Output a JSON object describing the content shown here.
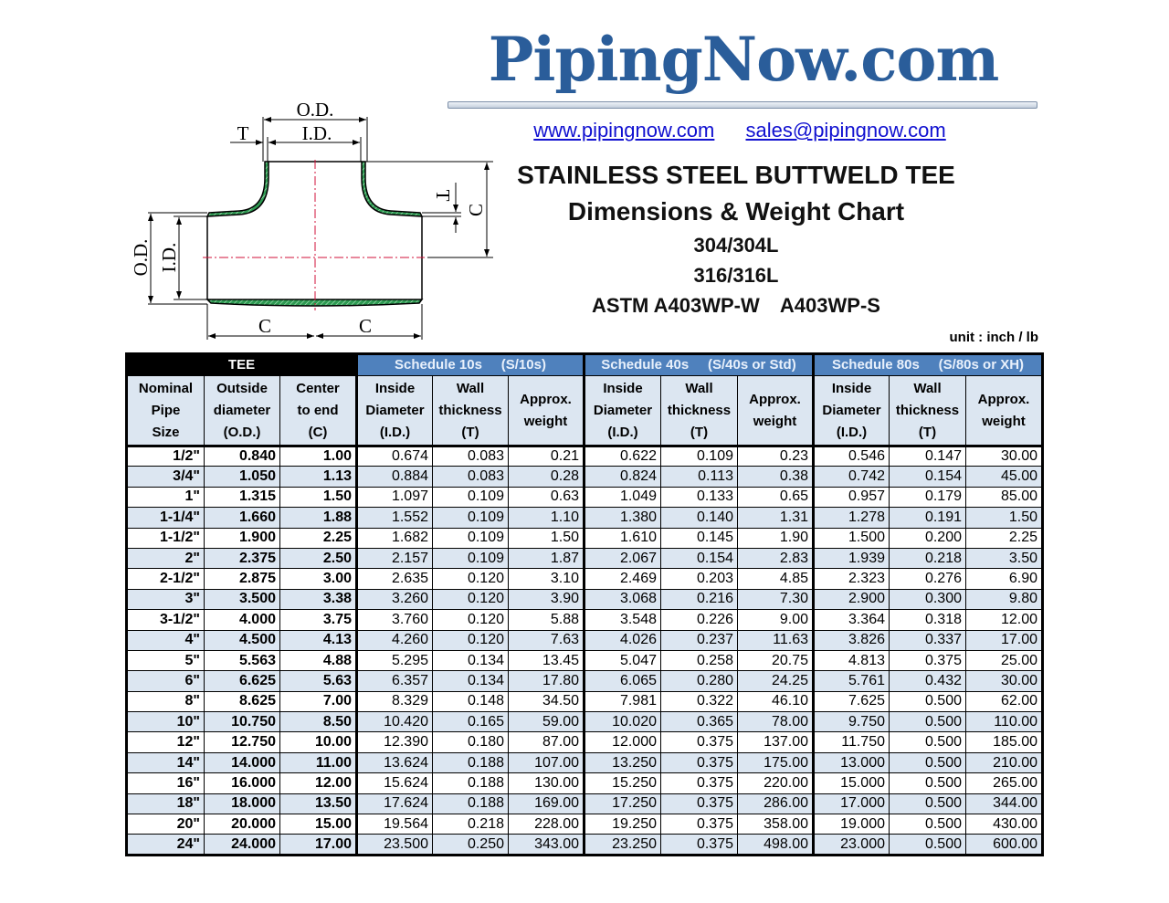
{
  "brand": {
    "logo_text": "PipingNow.com",
    "color": "#2a5d9a"
  },
  "links": {
    "website": "www.pipingnow.com",
    "email": "sales@pipingnow.com"
  },
  "title": {
    "line1": "STAINLESS STEEL BUTTWELD TEE",
    "line2": "Dimensions & Weight Chart",
    "line3": "304/304L",
    "line4": "316/316L",
    "standard_w": "ASTM A403WP-W",
    "standard_s": "A403WP-S"
  },
  "unit": "unit : inch / lb",
  "diagram": {
    "od": "O.D.",
    "id": "I.D.",
    "t": "T",
    "c": "C"
  },
  "table": {
    "groups": [
      "TEE",
      "Schedule 10s     (S/10s)",
      "Schedule 40s     (S/40s or Std)",
      "Schedule 80s     (S/80s or XH)"
    ],
    "columns": [
      [
        "Nominal",
        "Pipe",
        "Size"
      ],
      [
        "Outside",
        "diameter",
        "(O.D.)"
      ],
      [
        "Center",
        "to end",
        "(C)"
      ],
      [
        "Inside",
        "Diameter",
        "(I.D.)"
      ],
      [
        "Wall",
        "thickness",
        "(T)"
      ],
      [
        "Approx.",
        "weight"
      ],
      [
        "Inside",
        "Diameter",
        "(I.D.)"
      ],
      [
        "Wall",
        "thickness",
        "(T)"
      ],
      [
        "Approx.",
        "weight"
      ],
      [
        "Inside",
        "Diameter",
        "(I.D.)"
      ],
      [
        "Wall",
        "thickness",
        "(T)"
      ],
      [
        "Approx.",
        "weight"
      ]
    ],
    "rows": [
      [
        "1/2\"",
        "0.840",
        "1.00",
        "0.674",
        "0.083",
        "0.21",
        "0.622",
        "0.109",
        "0.23",
        "0.546",
        "0.147",
        "30.00"
      ],
      [
        "3/4\"",
        "1.050",
        "1.13",
        "0.884",
        "0.083",
        "0.28",
        "0.824",
        "0.113",
        "0.38",
        "0.742",
        "0.154",
        "45.00"
      ],
      [
        "1\"",
        "1.315",
        "1.50",
        "1.097",
        "0.109",
        "0.63",
        "1.049",
        "0.133",
        "0.65",
        "0.957",
        "0.179",
        "85.00"
      ],
      [
        "1-1/4\"",
        "1.660",
        "1.88",
        "1.552",
        "0.109",
        "1.10",
        "1.380",
        "0.140",
        "1.31",
        "1.278",
        "0.191",
        "1.50"
      ],
      [
        "1-1/2\"",
        "1.900",
        "2.25",
        "1.682",
        "0.109",
        "1.50",
        "1.610",
        "0.145",
        "1.90",
        "1.500",
        "0.200",
        "2.25"
      ],
      [
        "2\"",
        "2.375",
        "2.50",
        "2.157",
        "0.109",
        "1.87",
        "2.067",
        "0.154",
        "2.83",
        "1.939",
        "0.218",
        "3.50"
      ],
      [
        "2-1/2\"",
        "2.875",
        "3.00",
        "2.635",
        "0.120",
        "3.10",
        "2.469",
        "0.203",
        "4.85",
        "2.323",
        "0.276",
        "6.90"
      ],
      [
        "3\"",
        "3.500",
        "3.38",
        "3.260",
        "0.120",
        "3.90",
        "3.068",
        "0.216",
        "7.30",
        "2.900",
        "0.300",
        "9.80"
      ],
      [
        "3-1/2\"",
        "4.000",
        "3.75",
        "3.760",
        "0.120",
        "5.88",
        "3.548",
        "0.226",
        "9.00",
        "3.364",
        "0.318",
        "12.00"
      ],
      [
        "4\"",
        "4.500",
        "4.13",
        "4.260",
        "0.120",
        "7.63",
        "4.026",
        "0.237",
        "11.63",
        "3.826",
        "0.337",
        "17.00"
      ],
      [
        "5\"",
        "5.563",
        "4.88",
        "5.295",
        "0.134",
        "13.45",
        "5.047",
        "0.258",
        "20.75",
        "4.813",
        "0.375",
        "25.00"
      ],
      [
        "6\"",
        "6.625",
        "5.63",
        "6.357",
        "0.134",
        "17.80",
        "6.065",
        "0.280",
        "24.25",
        "5.761",
        "0.432",
        "30.00"
      ],
      [
        "8\"",
        "8.625",
        "7.00",
        "8.329",
        "0.148",
        "34.50",
        "7.981",
        "0.322",
        "46.10",
        "7.625",
        "0.500",
        "62.00"
      ],
      [
        "10\"",
        "10.750",
        "8.50",
        "10.420",
        "0.165",
        "59.00",
        "10.020",
        "0.365",
        "78.00",
        "9.750",
        "0.500",
        "110.00"
      ],
      [
        "12\"",
        "12.750",
        "10.00",
        "12.390",
        "0.180",
        "87.00",
        "12.000",
        "0.375",
        "137.00",
        "11.750",
        "0.500",
        "185.00"
      ],
      [
        "14\"",
        "14.000",
        "11.00",
        "13.624",
        "0.188",
        "107.00",
        "13.250",
        "0.375",
        "175.00",
        "13.000",
        "0.500",
        "210.00"
      ],
      [
        "16\"",
        "16.000",
        "12.00",
        "15.624",
        "0.188",
        "130.00",
        "15.250",
        "0.375",
        "220.00",
        "15.000",
        "0.500",
        "265.00"
      ],
      [
        "18\"",
        "18.000",
        "13.50",
        "17.624",
        "0.188",
        "169.00",
        "17.250",
        "0.375",
        "286.00",
        "17.000",
        "0.500",
        "344.00"
      ],
      [
        "20\"",
        "20.000",
        "15.00",
        "19.564",
        "0.218",
        "228.00",
        "19.250",
        "0.375",
        "358.00",
        "19.000",
        "0.500",
        "430.00"
      ],
      [
        "24\"",
        "24.000",
        "17.00",
        "23.500",
        "0.250",
        "343.00",
        "23.250",
        "0.375",
        "498.00",
        "23.000",
        "0.500",
        "600.00"
      ]
    ],
    "colors": {
      "group_tee": "#000000",
      "group_schedule": "#4f81bd",
      "header_fill": "#dce6f1",
      "alt_row": "#dce6f1"
    }
  }
}
